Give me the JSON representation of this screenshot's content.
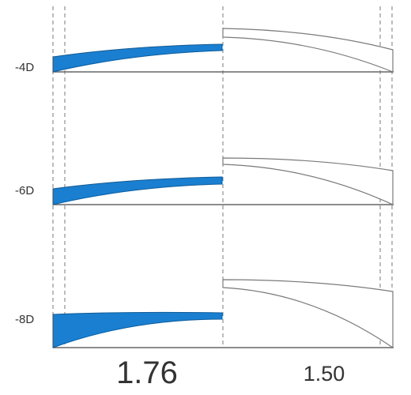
{
  "rows": [
    {
      "label": "-4D"
    },
    {
      "label": "-6D"
    },
    {
      "label": "-8D"
    }
  ],
  "indices": {
    "high": "1.76",
    "standard": "1.50"
  },
  "colors": {
    "high_index_fill": "#1a7fd0",
    "high_index_stroke": "#0f5b98",
    "outline": "#7a7a7a",
    "guide": "#7a7a7a",
    "baseline": "#666666"
  }
}
